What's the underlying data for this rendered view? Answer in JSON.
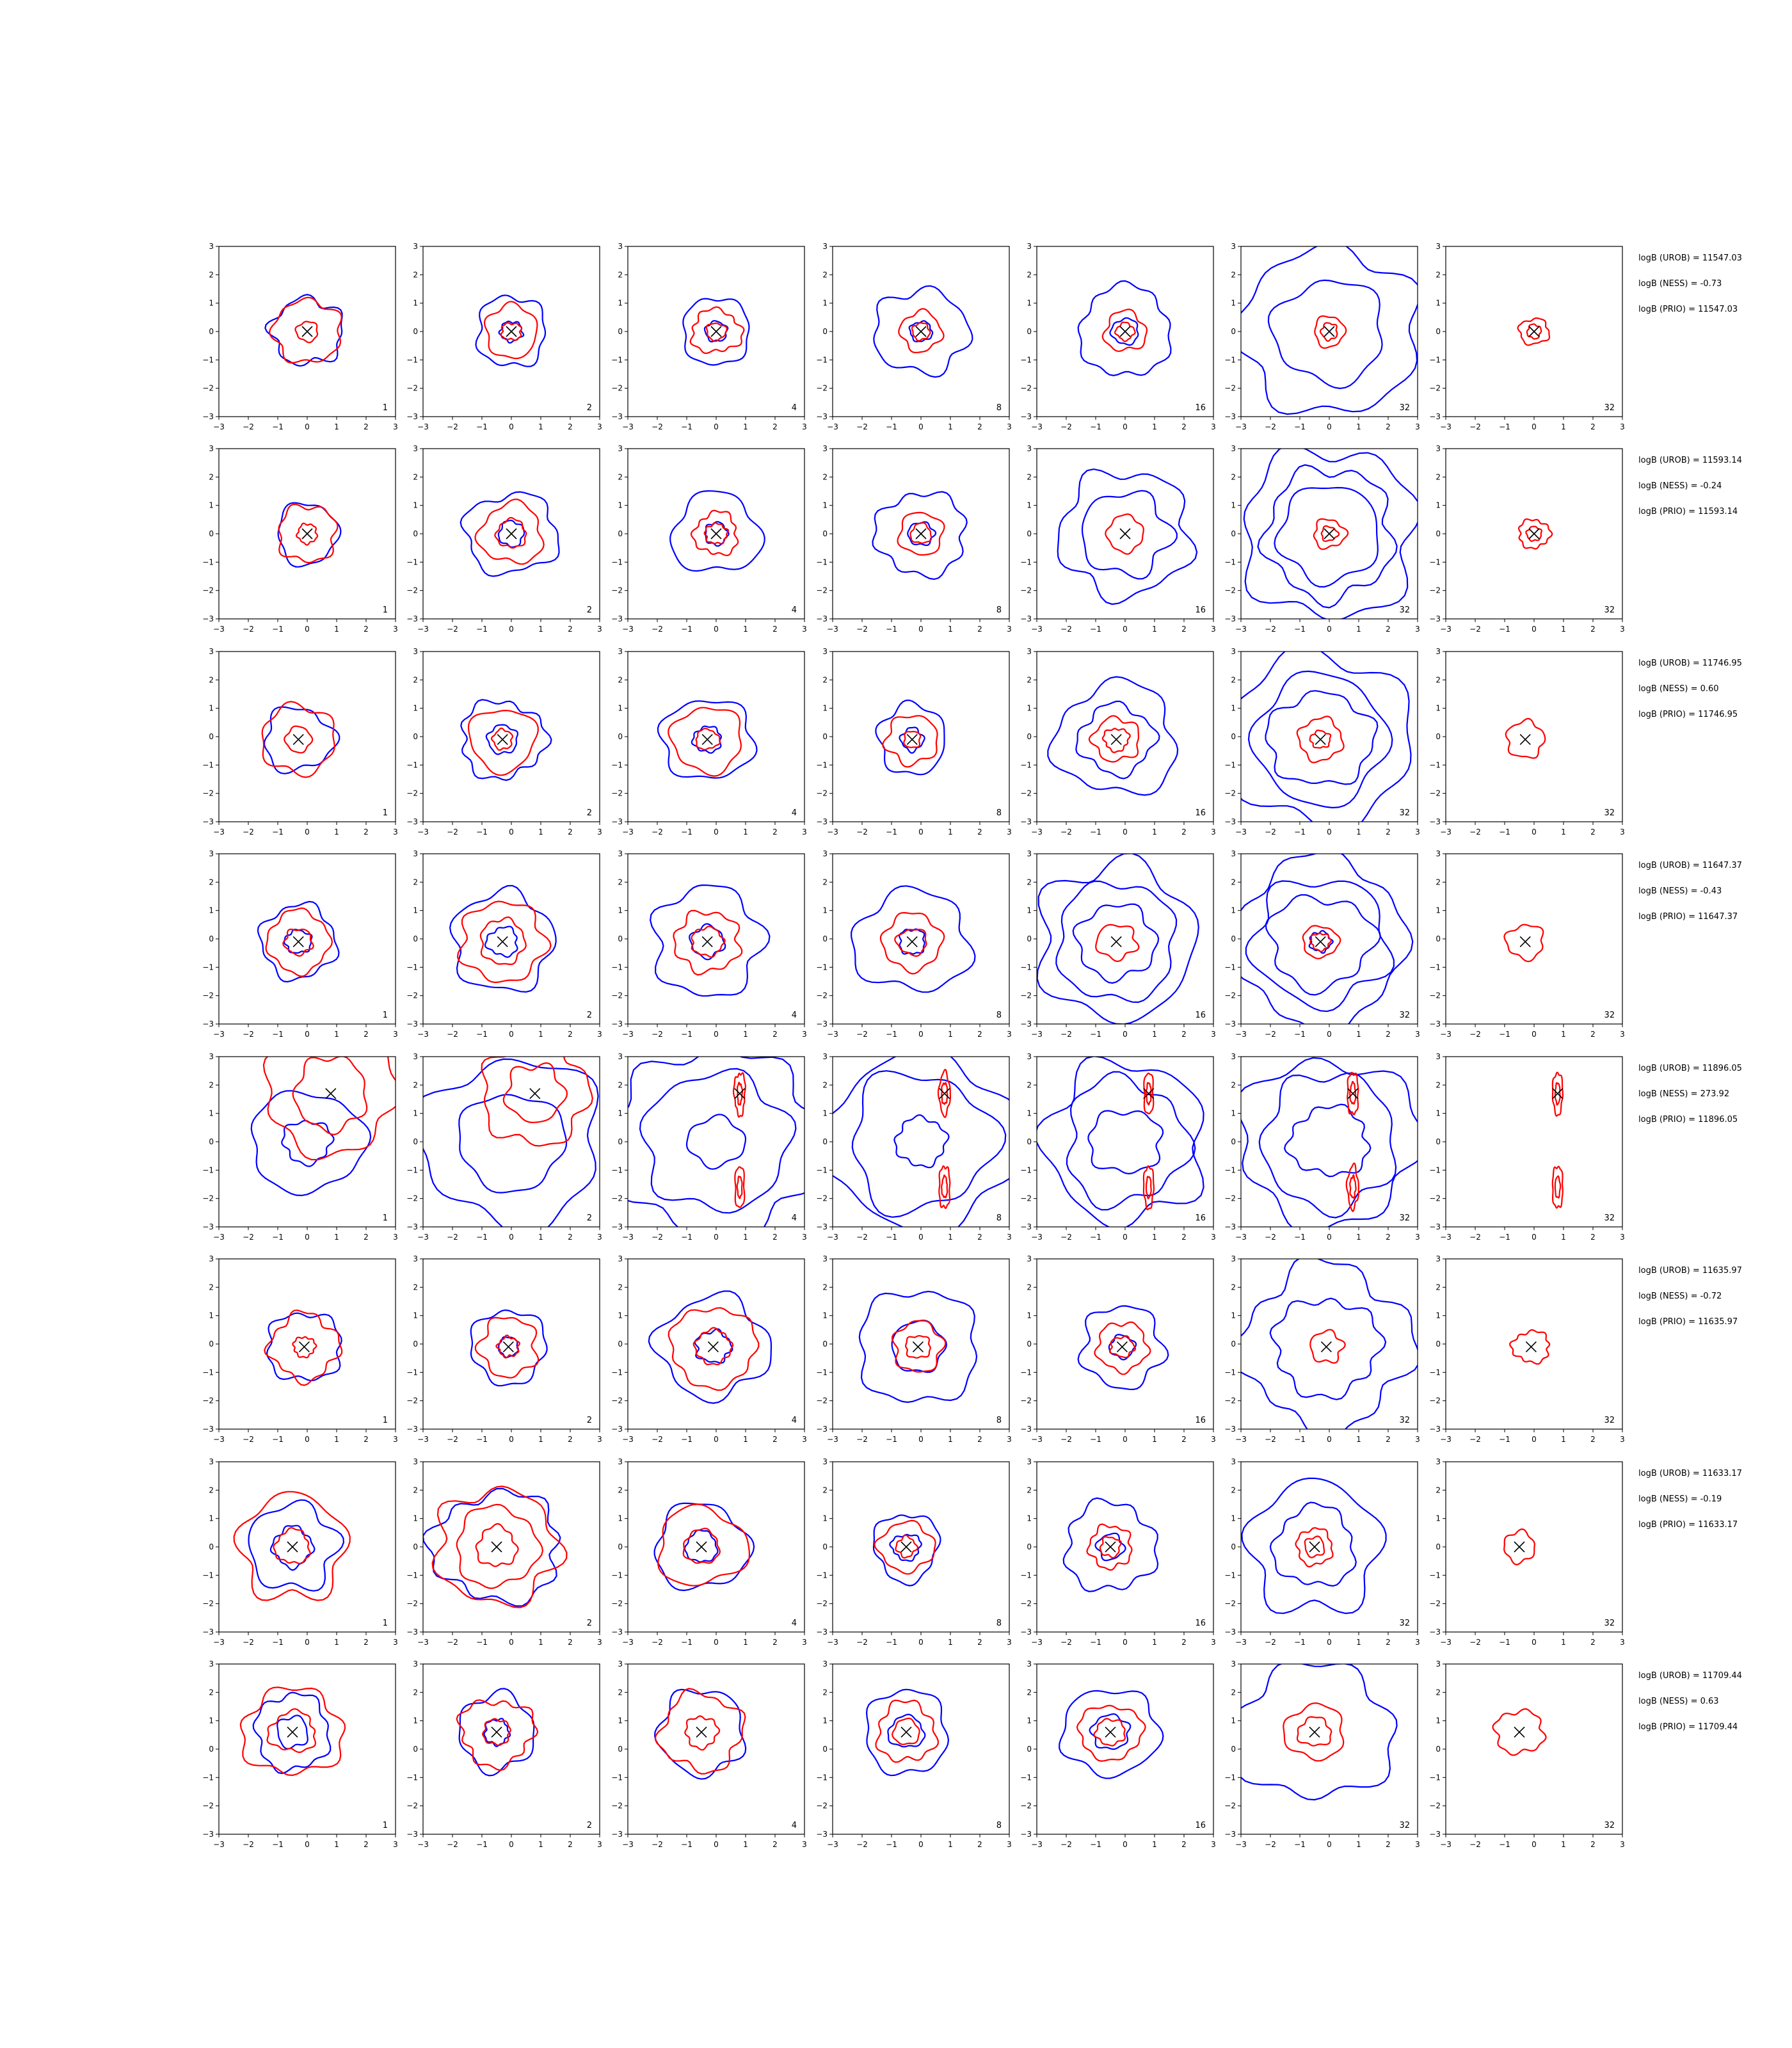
{
  "figure": {
    "columns": [
      "1",
      "2",
      "4",
      "8",
      "16",
      "32",
      "32"
    ]
  },
  "chart_data": {
    "type": "contour",
    "description_free": true,
    "xlim": [
      -3,
      3
    ],
    "ylim": [
      -3,
      3
    ],
    "x_ticks": [
      -3,
      -2,
      -1,
      0,
      1,
      2,
      3
    ],
    "y_ticks": [
      -3,
      -2,
      -1,
      0,
      1,
      2,
      3
    ],
    "series_colors": {
      "blue": "#0000ff",
      "red": "#ff0000",
      "marker": "#000000"
    },
    "rows": [
      {
        "marker": [
          0.0,
          0.0
        ],
        "annotations": [
          "logB (UROB) = 11547.03",
          "logB (NESS) = -0.73",
          "logB (PRIO) = 11547.03"
        ],
        "panels": [
          {
            "label": "1",
            "blue": [
              1.15
            ],
            "red": [
              1.1,
              0.35
            ]
          },
          {
            "label": "2",
            "blue": [
              1.25,
              0.35
            ],
            "red": [
              0.95,
              0.3
            ]
          },
          {
            "label": "4",
            "blue": [
              1.2,
              0.35
            ],
            "red": [
              0.75,
              0.3
            ]
          },
          {
            "label": "8",
            "blue": [
              1.45,
              0.35
            ],
            "red": [
              0.7,
              0.3
            ]
          },
          {
            "label": "16",
            "blue": [
              1.6,
              0.45
            ],
            "red": [
              0.7,
              0.3
            ]
          },
          {
            "label": "32",
            "blue": [
              2.9,
              1.8
            ],
            "red": [
              0.55,
              0.3
            ]
          },
          {
            "label": "32",
            "blue": [],
            "red": [
              0.45,
              0.25
            ]
          }
        ]
      },
      {
        "marker": [
          0.0,
          0.0
        ],
        "annotations": [
          "logB (UROB) = 11593.14",
          "logB (NESS) = -0.24",
          "logB (PRIO) = 11593.14"
        ],
        "panels": [
          {
            "label": "1",
            "blue": [
              1.1
            ],
            "red": [
              1.0,
              0.35
            ]
          },
          {
            "label": "2",
            "blue": [
              1.4,
              0.45
            ],
            "red": [
              1.05,
              0.5
            ]
          },
          {
            "label": "4",
            "blue": [
              1.4,
              0.4
            ],
            "red": [
              0.75,
              0.35
            ]
          },
          {
            "label": "8",
            "blue": [
              1.45,
              0.4
            ],
            "red": [
              0.75,
              0.35
            ]
          },
          {
            "label": "16",
            "blue": [
              2.2,
              1.45
            ],
            "red": [
              0.65
            ]
          },
          {
            "label": "32",
            "blue": [
              3.0,
              2.3,
              1.7
            ],
            "red": [
              0.5,
              0.25
            ]
          },
          {
            "label": "32",
            "blue": [],
            "red": [
              0.5,
              0.25
            ]
          }
        ]
      },
      {
        "marker": [
          -0.3,
          -0.1
        ],
        "annotations": [
          "logB (UROB) = 11746.95",
          "logB (NESS) = 0.60",
          "logB (PRIO) = 11746.95"
        ],
        "panels": [
          {
            "label": "1",
            "blue": [
              1.1
            ],
            "red": [
              1.2,
              0.45
            ]
          },
          {
            "label": "2",
            "blue": [
              1.35,
              0.5
            ],
            "red": [
              1.1,
              0.35
            ]
          },
          {
            "label": "4",
            "blue": [
              1.4,
              0.45
            ],
            "red": [
              1.15,
              0.35
            ]
          },
          {
            "label": "8",
            "blue": [
              1.25,
              0.4
            ],
            "red": [
              0.85,
              0.3
            ]
          },
          {
            "label": "16",
            "blue": [
              1.95,
              1.2
            ],
            "red": [
              0.75,
              0.4
            ]
          },
          {
            "label": "32",
            "blue": [
              3.0,
              2.3,
              1.6
            ],
            "red": [
              0.75,
              0.3
            ]
          },
          {
            "label": "32",
            "blue": [],
            "red": [
              0.65
            ]
          }
        ]
      },
      {
        "marker": [
          -0.3,
          -0.1
        ],
        "annotations": [
          "logB (UROB) = 11647.37",
          "logB (NESS) = -0.43",
          "logB (PRIO) = 11647.37"
        ],
        "panels": [
          {
            "label": "1",
            "blue": [
              1.3,
              0.4
            ],
            "red": [
              1.1,
              0.45
            ]
          },
          {
            "label": "2",
            "blue": [
              1.75,
              0.5
            ],
            "red": [
              1.4,
              0.8
            ]
          },
          {
            "label": "4",
            "blue": [
              1.95,
              0.55
            ],
            "red": [
              1.05,
              0.5
            ]
          },
          {
            "label": "8",
            "blue": [
              1.75,
              0.45
            ],
            "red": [
              1.0,
              0.45
            ]
          },
          {
            "label": "16",
            "blue": [
              2.75,
              2.1,
              1.3
            ],
            "red": [
              0.6
            ]
          },
          {
            "label": "32",
            "blue": [
              3.0,
              2.2,
              1.6,
              0.35
            ],
            "red": [
              0.55,
              0.3
            ]
          },
          {
            "label": "32",
            "blue": [],
            "red": [
              0.6
            ]
          }
        ]
      },
      {
        "marker": [
          0.8,
          1.7
        ],
        "annotations": [
          "logB (UROB) = 11896.05",
          "logB (NESS) = 273.92",
          "logB (PRIO) = 11896.05"
        ],
        "panels": [
          {
            "label": "1",
            "blue": [
              1.75,
              0.75
            ],
            "red": [
              2.1,
              1.3
            ]
          },
          {
            "label": "2",
            "blue": [
              2.9,
              1.7
            ],
            "red": [
              1.8,
              1.0
            ]
          },
          {
            "label": "4",
            "blue": [
              3.2,
              2.4,
              0.85
            ],
            "red": [
              0.5,
              0.25
            ]
          },
          {
            "label": "8",
            "blue": [
              3.0,
              2.4,
              0.85
            ],
            "red": [
              0.5,
              0.25
            ]
          },
          {
            "label": "16",
            "blue": [
              2.8,
              2.2,
              1.1
            ],
            "red": [
              0.5,
              0.25
            ]
          },
          {
            "label": "32",
            "blue": [
              2.9,
              2.4,
              1.2
            ],
            "red": [
              0.5,
              0.25
            ]
          },
          {
            "label": "32",
            "blue": [],
            "red": [
              0.5,
              0.25
            ]
          }
        ]
      },
      {
        "marker": [
          -0.1,
          -0.1
        ],
        "annotations": [
          "logB (UROB) = 11635.97",
          "logB (NESS) = -0.72",
          "logB (PRIO) = 11635.97"
        ],
        "panels": [
          {
            "label": "1",
            "blue": [
              1.2
            ],
            "red": [
              1.15,
              0.35
            ]
          },
          {
            "label": "2",
            "blue": [
              1.3,
              0.35
            ],
            "red": [
              1.05,
              0.35
            ]
          },
          {
            "label": "4",
            "blue": [
              1.75,
              0.55
            ],
            "red": [
              1.4,
              0.6
            ]
          },
          {
            "label": "8",
            "blue": [
              2.0,
              0.9
            ],
            "red": [
              0.9,
              0.4
            ]
          },
          {
            "label": "16",
            "blue": [
              1.45,
              0.4
            ],
            "red": [
              0.85,
              0.35
            ]
          },
          {
            "label": "32",
            "blue": [
              2.85,
              1.7
            ],
            "red": [
              0.55
            ]
          },
          {
            "label": "32",
            "blue": [],
            "red": [
              0.55
            ]
          }
        ]
      },
      {
        "marker": [
          -0.5,
          0.0
        ],
        "annotations": [
          "logB (UROB) = 11633.17",
          "logB (NESS) = -0.19",
          "logB (PRIO) = 11633.17"
        ],
        "panels": [
          {
            "label": "1",
            "blue": [
              1.5,
              0.7
            ],
            "red": [
              1.85,
              0.6
            ]
          },
          {
            "label": "2",
            "blue": [
              1.9
            ],
            "red": [
              2.0,
              1.4,
              0.7
            ]
          },
          {
            "label": "4",
            "blue": [
              1.5,
              0.55
            ],
            "red": [
              1.35,
              0.6
            ]
          },
          {
            "label": "8",
            "blue": [
              1.2,
              0.45
            ],
            "red": [
              0.85,
              0.35
            ]
          },
          {
            "label": "16",
            "blue": [
              1.55,
              0.45
            ],
            "red": [
              0.75,
              0.35
            ]
          },
          {
            "label": "32",
            "blue": [
              2.3,
              1.4
            ],
            "red": [
              0.65,
              0.35
            ]
          },
          {
            "label": "32",
            "blue": [],
            "red": [
              0.55
            ]
          }
        ]
      },
      {
        "marker": [
          -0.5,
          0.6
        ],
        "annotations": [
          "logB (UROB) = 11709.44",
          "logB (NESS) = 0.63",
          "logB (PRIO) = 11709.44"
        ],
        "panels": [
          {
            "label": "1",
            "blue": [
              1.35,
              0.55
            ],
            "red": [
              1.5,
              0.7
            ]
          },
          {
            "label": "2",
            "blue": [
              1.35,
              0.45
            ],
            "red": [
              1.15,
              0.45
            ]
          },
          {
            "label": "4",
            "blue": [
              1.5
            ],
            "red": [
              1.35,
              0.55
            ]
          },
          {
            "label": "8",
            "blue": [
              1.5,
              0.55
            ],
            "red": [
              1.05,
              0.45
            ]
          },
          {
            "label": "16",
            "blue": [
              1.5,
              0.6
            ],
            "red": [
              0.95,
              0.45
            ]
          },
          {
            "label": "32",
            "blue": [
              2.35
            ],
            "red": [
              0.95,
              0.5
            ]
          },
          {
            "label": "32",
            "blue": [],
            "red": [
              0.75
            ]
          }
        ]
      }
    ]
  }
}
